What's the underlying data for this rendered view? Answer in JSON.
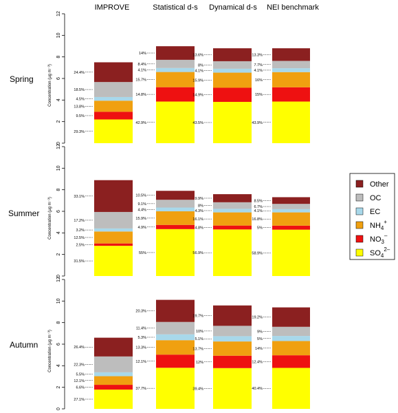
{
  "chart_data": {
    "type": "bar",
    "subtype": "stacked-bar-grid",
    "columns": [
      "IMPROVE",
      "Statistical d-s",
      "Dynamical d-s",
      "NEI benchmark"
    ],
    "rows": [
      "Spring",
      "Summer",
      "Autumn"
    ],
    "ylabel": "Concentration (μg m⁻³)",
    "ylim": [
      0,
      12
    ],
    "yticks": [
      "0",
      "2",
      "4",
      "6",
      "8",
      "10",
      "12"
    ],
    "components": [
      {
        "key": "SO4",
        "color": "#ffff00"
      },
      {
        "key": "NO3",
        "color": "#ee1111"
      },
      {
        "key": "NH4",
        "color": "#f0a010"
      },
      {
        "key": "EC",
        "color": "#a8d8ea"
      },
      {
        "key": "OC",
        "color": "#bdbdbd"
      },
      {
        "key": "Other",
        "color": "#8b2020"
      }
    ],
    "legend": {
      "position": "right",
      "items": [
        {
          "key": "Other",
          "label": "Other",
          "sup": "",
          "sub": ""
        },
        {
          "key": "OC",
          "label": "OC",
          "sup": "",
          "sub": ""
        },
        {
          "key": "EC",
          "label": "EC",
          "sup": "",
          "sub": ""
        },
        {
          "key": "NH4",
          "label": "NH",
          "sub": "4",
          "sup": "+"
        },
        {
          "key": "NO3",
          "label": "NO",
          "sub": "3",
          "sup": "–"
        },
        {
          "key": "SO4",
          "label": "SO",
          "sub": "4",
          "sup": "2–"
        }
      ]
    },
    "panels": [
      {
        "season": "Spring",
        "source": "IMPROVE",
        "total": 7.5,
        "values": [
          2.2,
          0.71,
          1.03,
          0.34,
          1.39,
          1.83
        ],
        "labels": [
          "29.3%",
          "9.5%",
          "13.8%",
          "4.5%",
          "18.5%",
          "24.4%"
        ]
      },
      {
        "season": "Spring",
        "source": "Statistical d-s",
        "total": 9.0,
        "values": [
          3.86,
          1.33,
          1.41,
          0.37,
          0.76,
          1.26
        ],
        "labels": [
          "42.9%",
          "14.8%",
          "15.7%",
          "4.1%",
          "8.4%",
          "14%"
        ]
      },
      {
        "season": "Spring",
        "source": "Dynamical d-s",
        "total": 8.8,
        "values": [
          3.83,
          1.31,
          1.4,
          0.36,
          0.7,
          1.2
        ],
        "labels": [
          "43.5%",
          "14.9%",
          "15.9%",
          "4.1%",
          "8%",
          "13.6%"
        ]
      },
      {
        "season": "Spring",
        "source": "NEI benchmark",
        "total": 8.8,
        "values": [
          3.86,
          1.32,
          1.41,
          0.36,
          0.68,
          1.17
        ],
        "labels": [
          "43.9%",
          "15%",
          "16%",
          "4.1%",
          "7.7%",
          "13.3%"
        ]
      },
      {
        "season": "Summer",
        "source": "IMPROVE",
        "total": 8.9,
        "values": [
          2.8,
          0.22,
          1.11,
          0.28,
          1.53,
          2.95
        ],
        "labels": [
          "31.5%",
          "2.5%",
          "12.5%",
          "3.2%",
          "17.2%",
          "33.1%"
        ]
      },
      {
        "season": "Summer",
        "source": "Statistical d-s",
        "total": 7.9,
        "values": [
          4.35,
          0.39,
          1.26,
          0.35,
          0.72,
          0.83
        ],
        "labels": [
          "55%",
          "4.9%",
          "15.9%",
          "4.4%",
          "9.1%",
          "10.5%"
        ]
      },
      {
        "season": "Summer",
        "source": "Dynamical d-s",
        "total": 7.6,
        "values": [
          4.32,
          0.36,
          1.22,
          0.33,
          0.61,
          0.75
        ],
        "labels": [
          "56.9%",
          "4.8%",
          "16.1%",
          "4.3%",
          "8%",
          "9.9%"
        ]
      },
      {
        "season": "Summer",
        "source": "NEI benchmark",
        "total": 7.3,
        "values": [
          4.3,
          0.37,
          1.23,
          0.3,
          0.49,
          0.62
        ],
        "labels": [
          "58.9%",
          "5%",
          "16.8%",
          "4.1%",
          "6.7%",
          "8.5%"
        ]
      },
      {
        "season": "Autumn",
        "source": "IMPROVE",
        "total": 6.6,
        "values": [
          1.79,
          0.44,
          0.8,
          0.36,
          1.47,
          1.74
        ],
        "labels": [
          "27.1%",
          "6.6%",
          "12.1%",
          "5.5%",
          "22.3%",
          "26.4%"
        ]
      },
      {
        "season": "Autumn",
        "source": "Statistical d-s",
        "total": 10.1,
        "values": [
          3.81,
          1.22,
          1.34,
          0.54,
          1.15,
          2.05
        ],
        "labels": [
          "37.7%",
          "12.1%",
          "13.3%",
          "5.3%",
          "11.4%",
          "20.3%"
        ]
      },
      {
        "season": "Autumn",
        "source": "Dynamical d-s",
        "total": 9.6,
        "values": [
          3.78,
          1.15,
          1.32,
          0.49,
          0.96,
          1.89
        ],
        "labels": [
          "39.4%",
          "12%",
          "13.7%",
          "5.1%",
          "10%",
          "19.7%"
        ]
      },
      {
        "season": "Autumn",
        "source": "NEI benchmark",
        "total": 9.4,
        "values": [
          3.8,
          1.17,
          1.32,
          0.47,
          0.85,
          1.8
        ],
        "labels": [
          "40.4%",
          "12.4%",
          "14%",
          "5%",
          "9%",
          "19.2%"
        ]
      }
    ]
  }
}
